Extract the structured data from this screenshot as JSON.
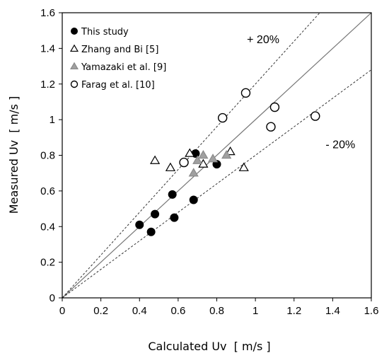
{
  "chart_data": {
    "type": "scatter",
    "xlabel": "Calculated Uv  [ m/s ]",
    "ylabel": "Measured Uv  [ m/s ]",
    "xlim": [
      0,
      1.6
    ],
    "ylim": [
      0,
      1.6
    ],
    "xticks": [
      0,
      0.2,
      0.4,
      0.6,
      0.8,
      1.0,
      1.2,
      1.4,
      1.6
    ],
    "yticks": [
      0,
      0.2,
      0.4,
      0.6,
      0.8,
      1.0,
      1.2,
      1.4,
      1.6
    ],
    "xtick_labels": [
      "0",
      "0.2",
      "0.4",
      "0.6",
      "0.8",
      "1",
      "1.2",
      "1.4",
      "1.6"
    ],
    "ytick_labels": [
      "0",
      "0.2",
      "0.4",
      "0.6",
      "0.8",
      "1",
      "1.2",
      "1.4",
      "1.6"
    ],
    "grid": false,
    "legend_position": "top-left",
    "series": [
      {
        "name": "This study",
        "marker": "filled-circle",
        "color": "#000000",
        "points": [
          [
            0.4,
            0.41
          ],
          [
            0.46,
            0.37
          ],
          [
            0.48,
            0.47
          ],
          [
            0.57,
            0.58
          ],
          [
            0.58,
            0.45
          ],
          [
            0.68,
            0.55
          ],
          [
            0.69,
            0.81
          ],
          [
            0.8,
            0.75
          ]
        ]
      },
      {
        "name": "Zhang and Bi [5]",
        "marker": "open-triangle",
        "color": "#000000",
        "points": [
          [
            0.48,
            0.77
          ],
          [
            0.56,
            0.73
          ],
          [
            0.66,
            0.81
          ],
          [
            0.73,
            0.75
          ],
          [
            0.87,
            0.82
          ],
          [
            0.94,
            0.73
          ]
        ]
      },
      {
        "name": "Yamazaki et al. [9]",
        "marker": "gray-triangle",
        "color": "#a0a0a0",
        "points": [
          [
            0.68,
            0.7
          ],
          [
            0.7,
            0.77
          ],
          [
            0.73,
            0.8
          ],
          [
            0.78,
            0.78
          ],
          [
            0.85,
            0.8
          ]
        ]
      },
      {
        "name": "Farag et al. [10]",
        "marker": "open-circle",
        "color": "#000000",
        "points": [
          [
            0.63,
            0.76
          ],
          [
            0.83,
            1.01
          ],
          [
            0.95,
            1.15
          ],
          [
            1.08,
            0.96
          ],
          [
            1.1,
            1.07
          ],
          [
            1.31,
            1.02
          ]
        ]
      }
    ],
    "reference_lines": [
      {
        "kind": "identity",
        "slope": 1.0,
        "style": "solid"
      },
      {
        "kind": "upper",
        "slope": 1.2,
        "style": "dashed",
        "label": "+ 20%"
      },
      {
        "kind": "lower",
        "slope": 0.8,
        "style": "dashed",
        "label": "- 20%"
      }
    ]
  }
}
